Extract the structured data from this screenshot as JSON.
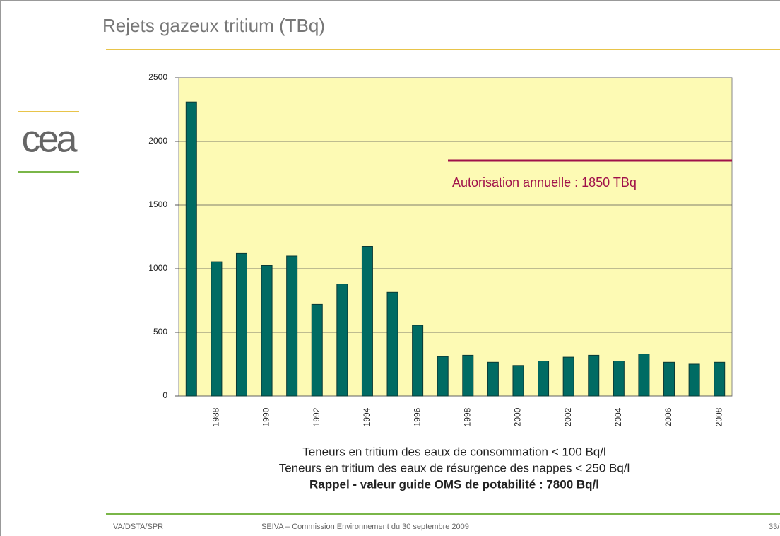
{
  "logo": "cea",
  "chart_data": {
    "type": "bar",
    "title": "Rejets gazeux tritium (TBq)",
    "categories": [
      null,
      "1988",
      null,
      "1990",
      null,
      "1992",
      null,
      "1994",
      null,
      "1996",
      null,
      "1998",
      null,
      "2000",
      null,
      "2002",
      null,
      "2004",
      null,
      "2006",
      null,
      "2008"
    ],
    "values": [
      2310,
      1055,
      1120,
      1025,
      1100,
      720,
      880,
      1175,
      815,
      555,
      310,
      320,
      265,
      240,
      275,
      305,
      320,
      275,
      330,
      265,
      250,
      265
    ],
    "color": "#006b63",
    "ylim": [
      0,
      2500
    ],
    "yticks": [
      0,
      500,
      1000,
      1500,
      2000,
      2500
    ],
    "grid": true,
    "reference_line": {
      "value": 1850,
      "label": "Autorisation annuelle : 1850 TBq",
      "color": "#a0104a"
    }
  },
  "notes": [
    "Teneurs en tritium des eaux de consommation < 100 Bq/l",
    "Teneurs en tritium des eaux de résurgence des nappes < 250 Bq/l",
    "Rappel - valeur guide OMS de potabilité : 7800 Bq/l"
  ],
  "footer": {
    "left": "VA/DSTA/SPR",
    "center": "SEIVA – Commission Environnement du 30 septembre 2009",
    "page": "33/"
  }
}
